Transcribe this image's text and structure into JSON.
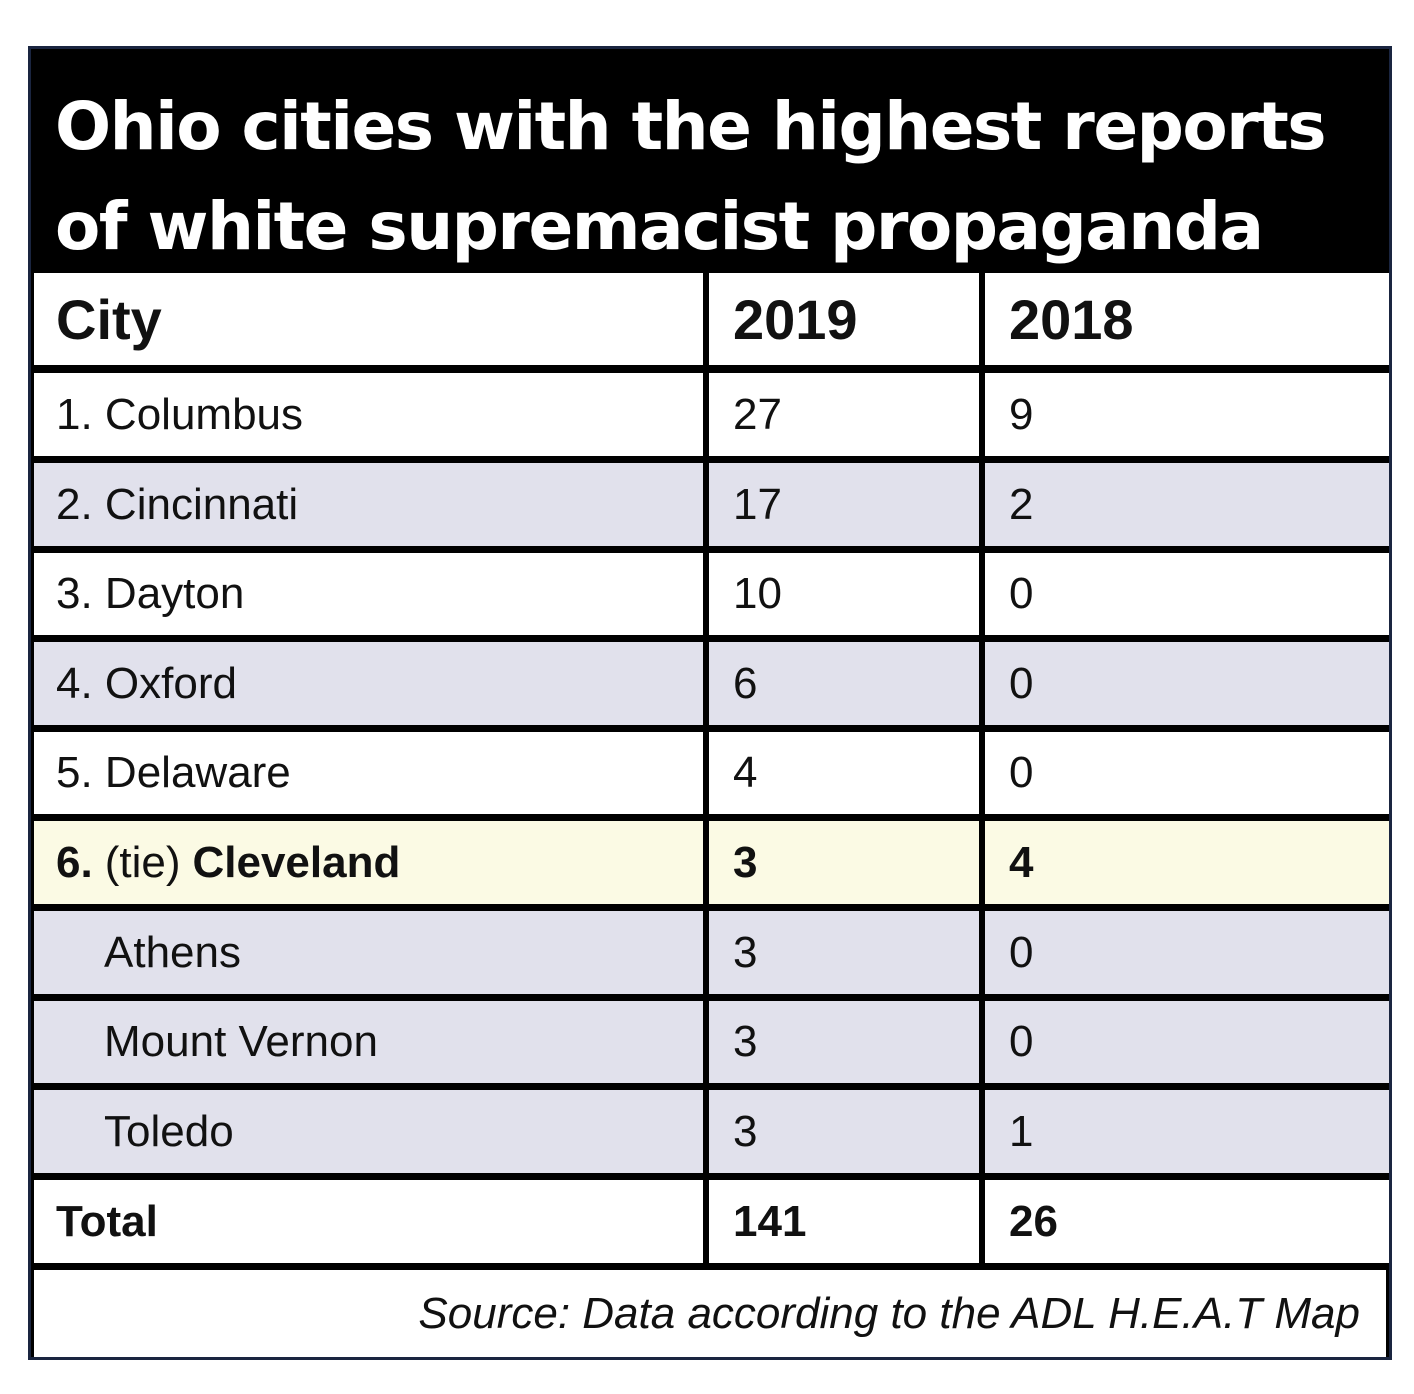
{
  "chart_data": {
    "type": "table",
    "title": "Ohio cities with the highest reports of white supremacist propaganda",
    "columns": [
      "City",
      "2019",
      "2018"
    ],
    "rows": [
      {
        "city": "1. Columbus",
        "y2019": "27",
        "y2018": "9"
      },
      {
        "city": "2. Cincinnati",
        "y2019": "17",
        "y2018": "2"
      },
      {
        "city": "3. Dayton",
        "y2019": "10",
        "y2018": "0"
      },
      {
        "city": "4. Oxford",
        "y2019": "6",
        "y2018": "0"
      },
      {
        "city": "5. Delaware",
        "y2019": "4",
        "y2018": "0"
      },
      {
        "rank": "6.",
        "tie": "(tie)",
        "city": "Cleveland",
        "y2019": "3",
        "y2018": "4"
      },
      {
        "city": "Athens",
        "y2019": "3",
        "y2018": "0"
      },
      {
        "city": "Mount Vernon",
        "y2019": "3",
        "y2018": "0"
      },
      {
        "city": "Toledo",
        "y2019": "3",
        "y2018": "1"
      }
    ],
    "total": {
      "label": "Total",
      "y2019": "141",
      "y2018": "26"
    },
    "source": "Source: Data according to the ADL H.E.A.T Map"
  },
  "colors": {
    "title_bg": "#000000",
    "title_text": "#ffffff",
    "row_shade": "#e1e1ec",
    "row_highlight": "#fbfae4",
    "grid_lines": "#111111"
  }
}
